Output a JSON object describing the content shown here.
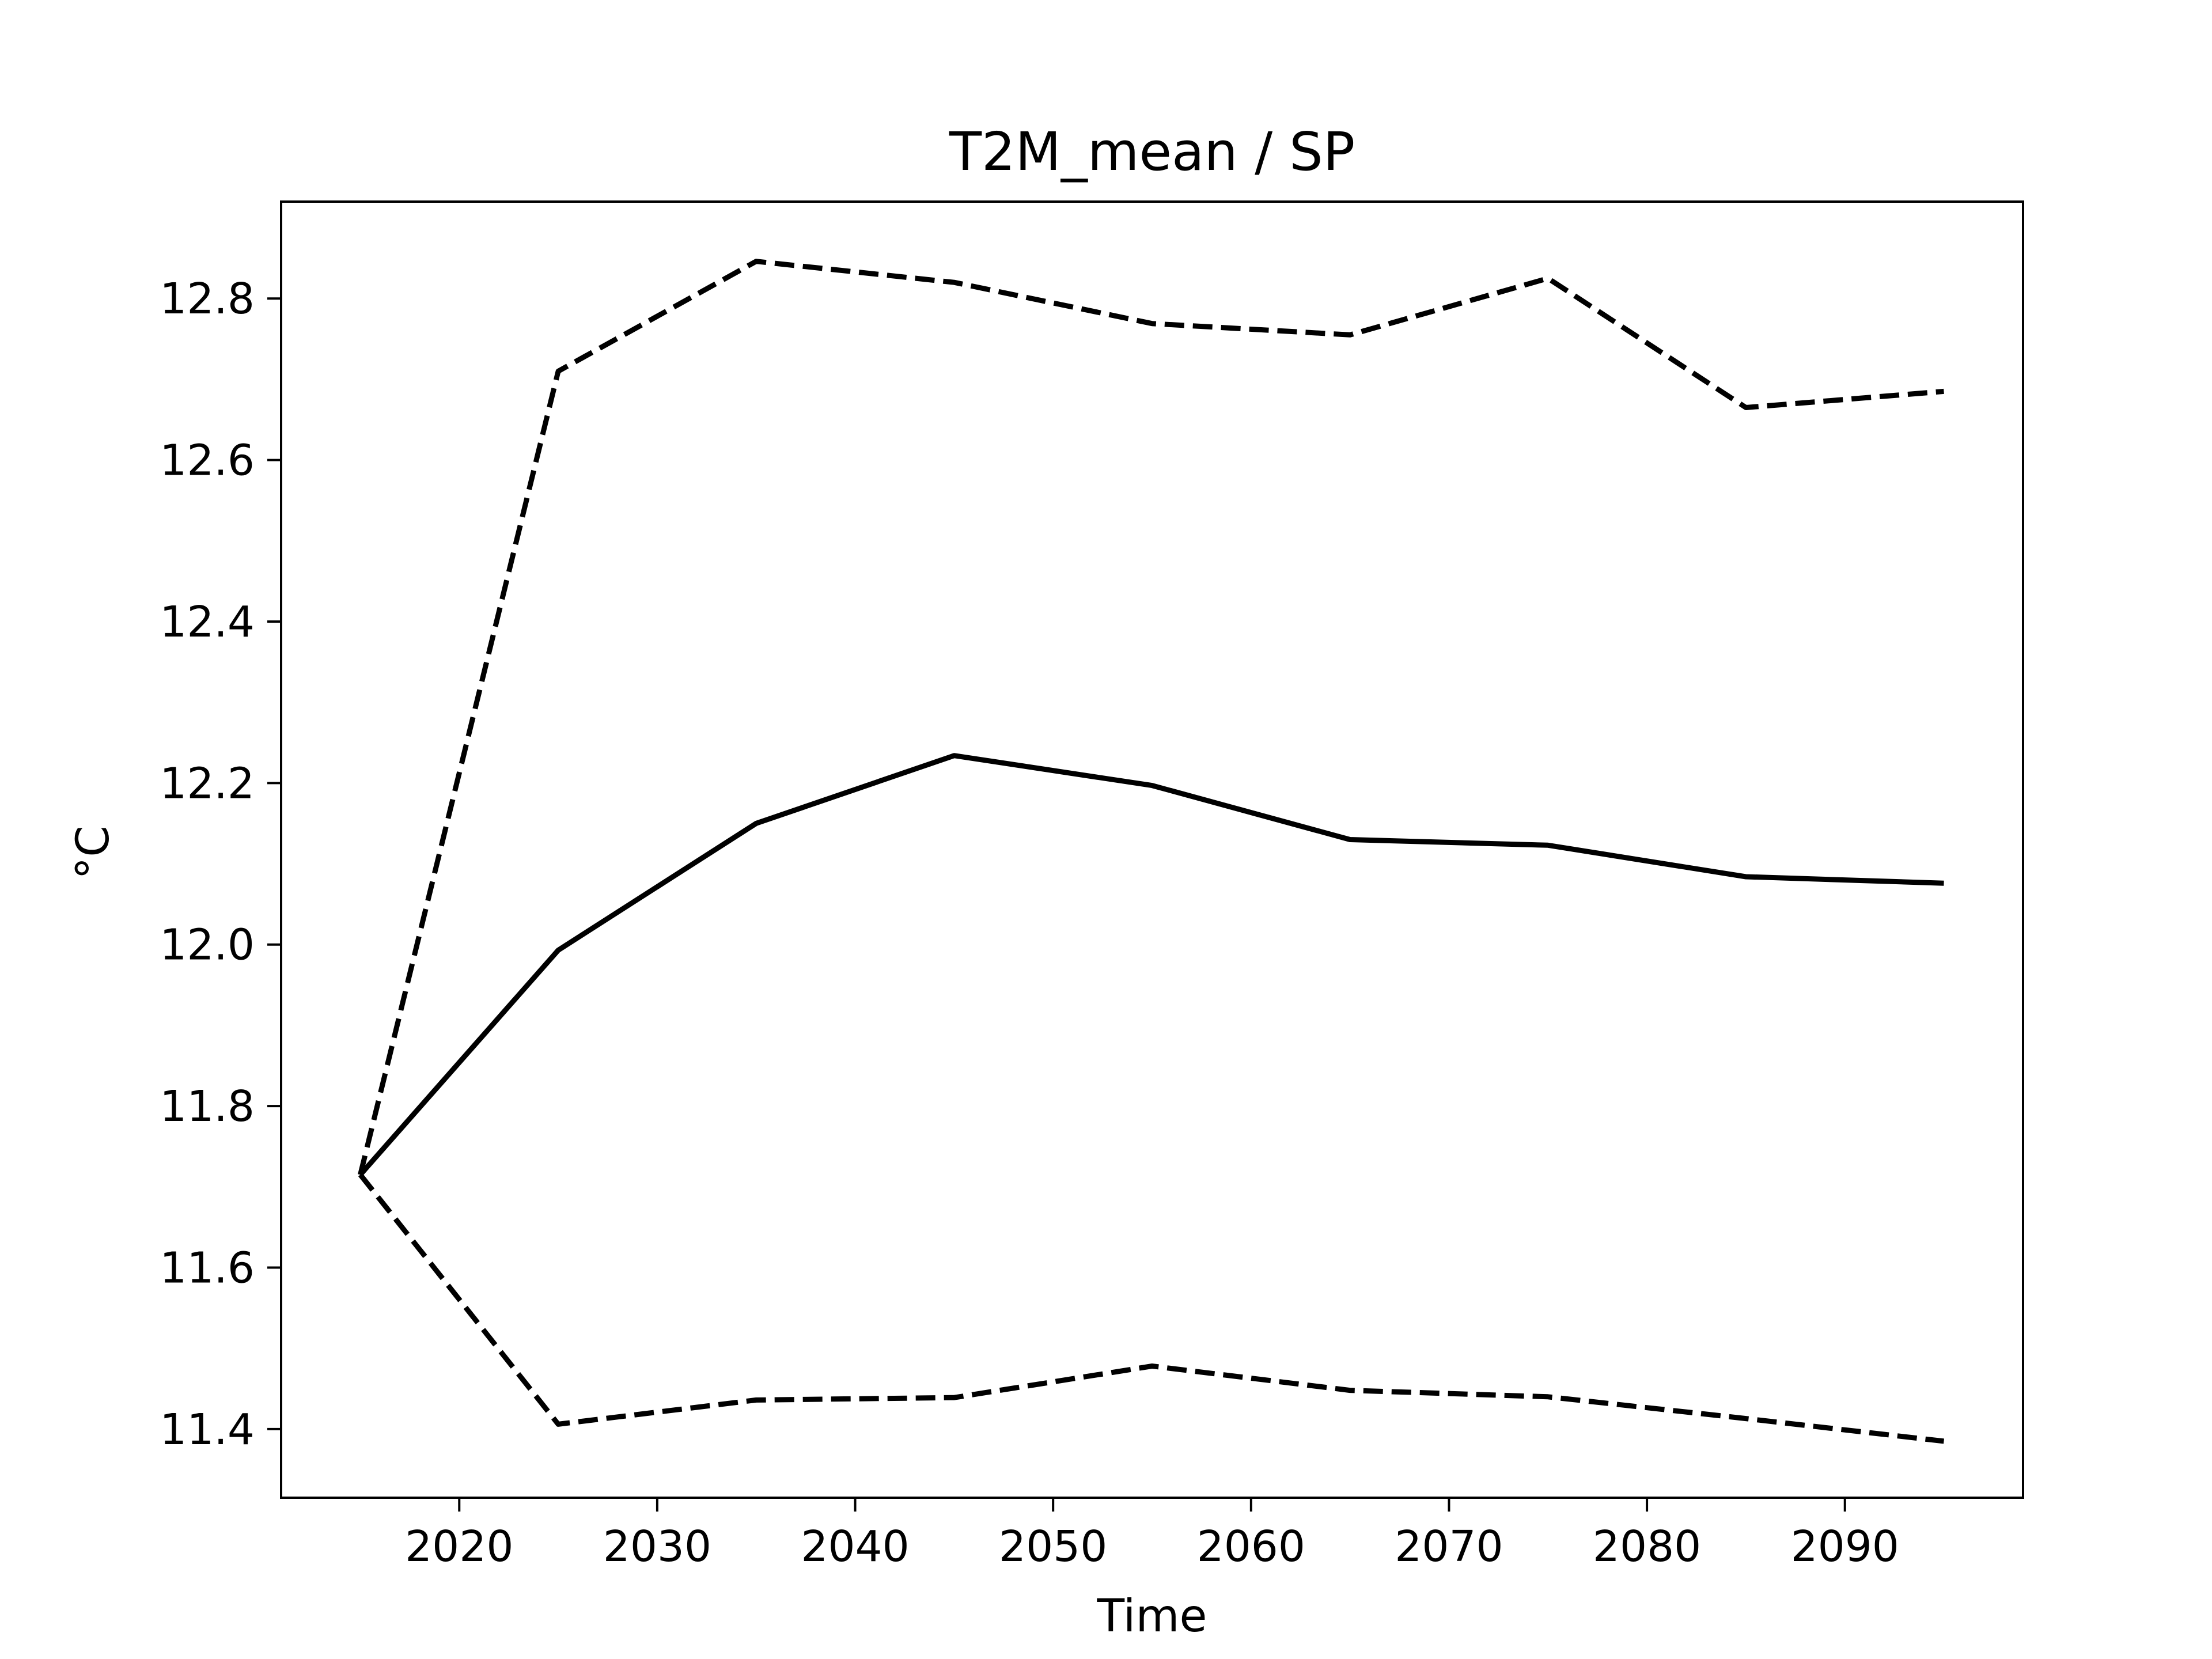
{
  "chart_data": {
    "type": "line",
    "title": "T2M_mean / SP",
    "xlabel": "Time",
    "ylabel": "°C",
    "xlim": [
      2011,
      2099
    ],
    "ylim": [
      11.315,
      12.92
    ],
    "xticks": [
      2020,
      2030,
      2040,
      2050,
      2060,
      2070,
      2080,
      2090
    ],
    "yticks": [
      11.4,
      11.6,
      11.8,
      12.0,
      12.2,
      12.4,
      12.6,
      12.8
    ],
    "ytick_labels": [
      "11.4",
      "11.6",
      "11.8",
      "12.0",
      "12.2",
      "12.4",
      "12.6",
      "12.8"
    ],
    "grid": false,
    "x": [
      2015,
      2025,
      2035,
      2045,
      2055,
      2065,
      2075,
      2085,
      2095
    ],
    "series": [
      {
        "style": "solid",
        "color": "#000000",
        "values": [
          11.715,
          11.993,
          12.15,
          12.234,
          12.197,
          12.13,
          12.123,
          12.084,
          12.076
        ]
      },
      {
        "style": "dashed",
        "color": "#000000",
        "values": [
          11.715,
          12.71,
          12.846,
          12.82,
          12.769,
          12.755,
          12.825,
          12.665,
          12.685
        ]
      },
      {
        "style": "dashed",
        "color": "#000000",
        "values": [
          11.715,
          11.406,
          11.436,
          11.439,
          11.478,
          11.448,
          11.44,
          11.413,
          11.385
        ]
      }
    ]
  }
}
